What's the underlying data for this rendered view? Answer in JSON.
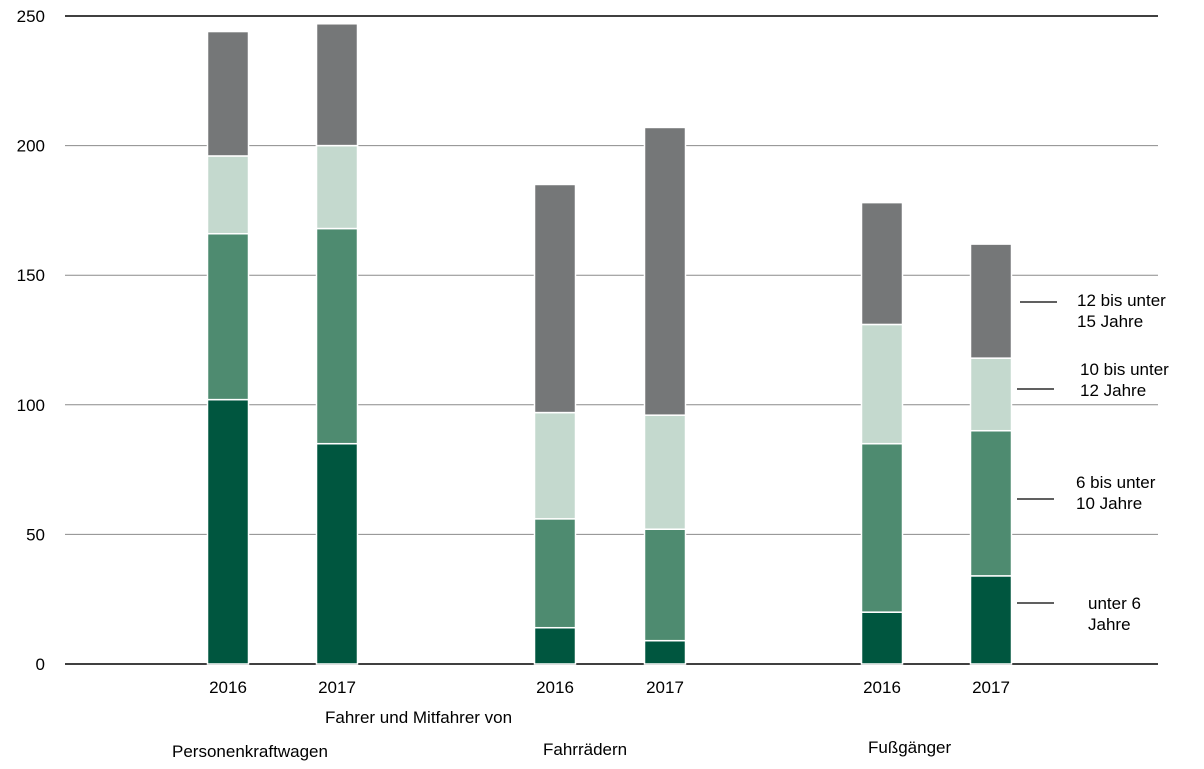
{
  "chart_data": {
    "type": "bar",
    "stacked": true,
    "ylim": [
      0,
      250
    ],
    "yticks": [
      0,
      50,
      100,
      150,
      200,
      250
    ],
    "grid": true,
    "legend_placement": "right",
    "groups": [
      {
        "label": "Personenkraftwagen",
        "bars": [
          {
            "x": "2016",
            "values": [
              102,
              64,
              30,
              48
            ]
          },
          {
            "x": "2017",
            "values": [
              85,
              83,
              32,
              47
            ]
          }
        ]
      },
      {
        "label": "Fahrrädern",
        "bars": [
          {
            "x": "2016",
            "values": [
              14,
              42,
              41,
              88
            ]
          },
          {
            "x": "2017",
            "values": [
              9,
              43,
              44,
              111
            ]
          }
        ]
      },
      {
        "label": "Fußgänger",
        "bars": [
          {
            "x": "2016",
            "values": [
              20,
              65,
              46,
              47
            ]
          },
          {
            "x": "2017",
            "values": [
              34,
              56,
              28,
              44
            ]
          }
        ]
      }
    ],
    "series": [
      {
        "name_lines": [
          "unter 6",
          "Jahre"
        ],
        "color": "#00563f"
      },
      {
        "name_lines": [
          "6 bis unter",
          "10 Jahre"
        ],
        "color": "#4e8b70"
      },
      {
        "name_lines": [
          "10 bis unter",
          "12 Jahre"
        ],
        "color": "#c4d9ce"
      },
      {
        "name_lines": [
          "12 bis unter",
          "15 Jahre"
        ],
        "color": "#757778"
      }
    ],
    "xlabel": "Fahrer und Mitfahrer von"
  }
}
